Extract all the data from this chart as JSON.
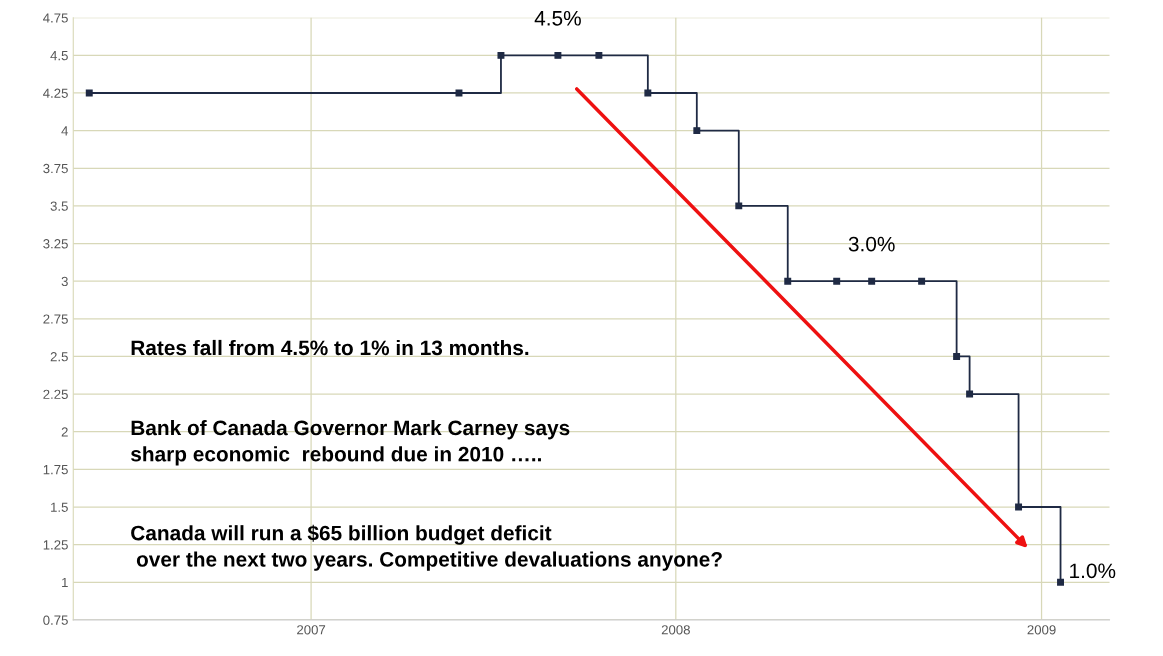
{
  "chart_data": {
    "type": "step",
    "x": [
      "2006-05-24",
      "2007-05-29",
      "2007-07-10",
      "2007-09-05",
      "2007-10-16",
      "2007-12-04",
      "2008-01-22",
      "2008-03-04",
      "2008-04-22",
      "2008-06-10",
      "2008-07-15",
      "2008-09-03",
      "2008-10-08",
      "2008-10-21",
      "2008-12-09",
      "2009-01-20"
    ],
    "series": [
      {
        "color": "#1f2a44",
        "values": [
          4.25,
          4.25,
          4.5,
          4.5,
          4.5,
          4.25,
          4.0,
          3.5,
          3.0,
          3.0,
          3.0,
          3.0,
          2.5,
          2.25,
          1.5,
          1.0
        ]
      }
    ],
    "xlim": [
      "2006-05-08",
      "2009-03-10"
    ],
    "xticks": [
      {
        "value": "2007-01-01",
        "label": "2007"
      },
      {
        "value": "2008-01-01",
        "label": "2008"
      },
      {
        "value": "2009-01-01",
        "label": "2009"
      }
    ],
    "ylim": [
      0.75,
      4.75
    ],
    "yticks": [
      {
        "value": 0.75,
        "label": "0.75"
      },
      {
        "value": 1,
        "label": "1"
      },
      {
        "value": 1.25,
        "label": "1.25"
      },
      {
        "value": 1.5,
        "label": "1.5"
      },
      {
        "value": 1.75,
        "label": "1.75"
      },
      {
        "value": 2,
        "label": "2"
      },
      {
        "value": 2.25,
        "label": "2.25"
      },
      {
        "value": 2.5,
        "label": "2.5"
      },
      {
        "value": 2.75,
        "label": "2.75"
      },
      {
        "value": 3,
        "label": "3"
      },
      {
        "value": 3.25,
        "label": "3.25"
      },
      {
        "value": 3.5,
        "label": "3.5"
      },
      {
        "value": 3.75,
        "label": "3.75"
      },
      {
        "value": 4,
        "label": "4"
      },
      {
        "value": 4.25,
        "label": "4.25"
      },
      {
        "value": 4.5,
        "label": "4.5"
      },
      {
        "value": 4.75,
        "label": "4.75"
      }
    ],
    "grid": true,
    "marker": "square",
    "line_style": "solid",
    "legend": false,
    "annotations": [
      {
        "text": "4.5%",
        "x": "2007-09-05",
        "y": 4.5
      },
      {
        "text": "3.0%",
        "x": "2008-07-15",
        "y": 3.0
      },
      {
        "text": "1.0%",
        "x": "2009-01-20",
        "y": 1.0
      },
      "Rates fall from 4.5% to 1% in 13 months.",
      "Bank of Canada Governor Mark Carney says\nsharp economic  rebound due in 2010 …..",
      "Canada will run a $65 billion budget deficit\n over the next two years. Competitive devaluations anyone?"
    ]
  }
}
